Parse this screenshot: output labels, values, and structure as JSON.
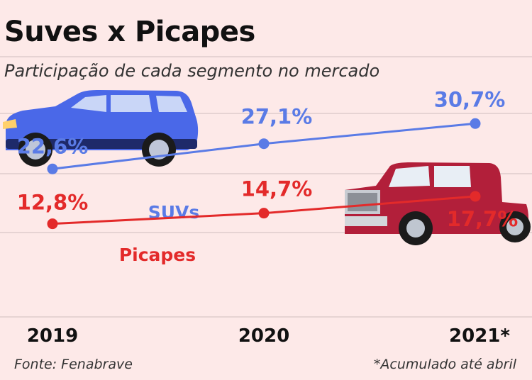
{
  "header": {
    "title": "Suves x Picapes",
    "subtitle": "Participação de cada segmento no mercado"
  },
  "footer": {
    "source": "Fonte: Fenabrave",
    "note": "*Acumulado até abril"
  },
  "colors": {
    "background": "#fde9e8",
    "suv": "#5a7be6",
    "picape": "#e32a2a",
    "grid": "#d9c6c6"
  },
  "icons": [
    "suv-car-illustration",
    "pickup-truck-illustration"
  ],
  "chart_data": {
    "type": "line",
    "x": [
      "2019",
      "2020",
      "2021*"
    ],
    "series": [
      {
        "name": "SUVs",
        "values": [
          22.6,
          27.1,
          30.7
        ],
        "labels": [
          "22,6%",
          "27,1%",
          "30,7%"
        ]
      },
      {
        "name": "Picapes",
        "values": [
          12.8,
          14.7,
          17.7
        ],
        "labels": [
          "12,8%",
          "14,7%",
          "17,7%"
        ]
      }
    ],
    "grid": true
  }
}
